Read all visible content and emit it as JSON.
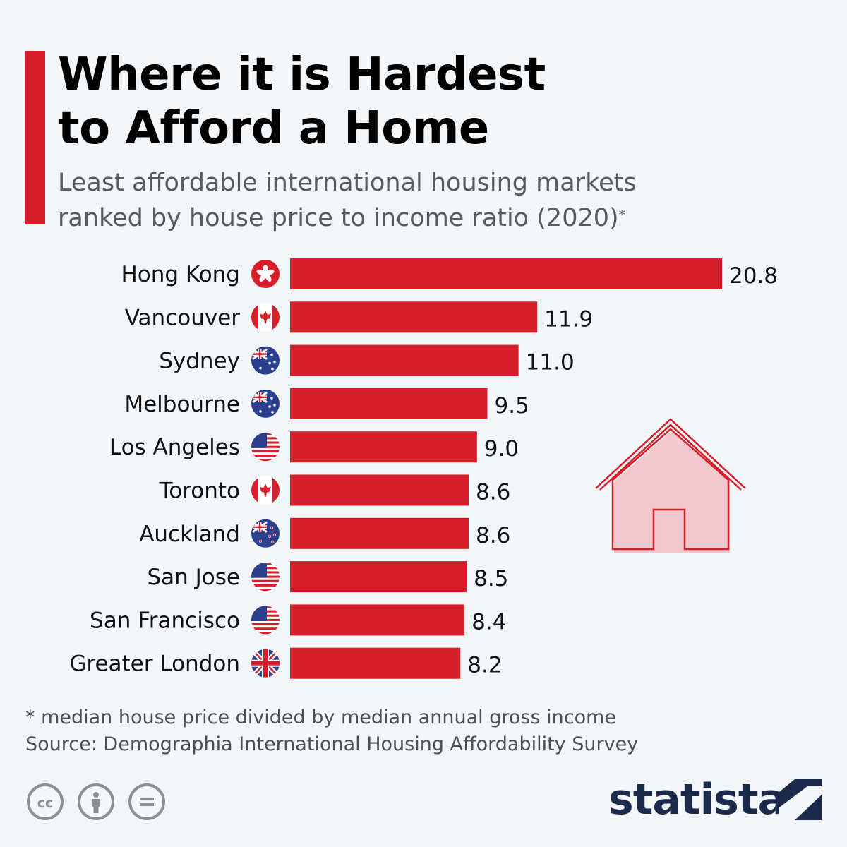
{
  "title": [
    "Where it is Hardest",
    "to Afford a Home"
  ],
  "subtitle": [
    "Least affordable international housing markets",
    "ranked by house price to income ratio (2020)"
  ],
  "subtitle_mark": "*",
  "colors": {
    "accent": "#d61f2a",
    "bar": "#d61f2a",
    "house_fill": "#f3c9cf",
    "logo": "#1b2a4a"
  },
  "chart_data": {
    "type": "bar",
    "orientation": "horizontal",
    "categories": [
      "Hong Kong",
      "Vancouver",
      "Sydney",
      "Melbourne",
      "Los Angeles",
      "Toronto",
      "Auckland",
      "San Jose",
      "San Francisco",
      "Greater London"
    ],
    "values": [
      20.8,
      11.9,
      11.0,
      9.5,
      9.0,
      8.6,
      8.6,
      8.5,
      8.4,
      8.2
    ],
    "value_labels": [
      "20.8",
      "11.9",
      "11.0",
      "9.5",
      "9.0",
      "8.6",
      "8.6",
      "8.5",
      "8.4",
      "8.2"
    ],
    "flags": [
      "hong-kong",
      "canada",
      "australia",
      "australia",
      "usa",
      "canada",
      "new-zealand",
      "usa",
      "usa",
      "uk"
    ],
    "xlim": [
      0,
      20.8
    ]
  },
  "footnote": [
    "* median house price divided by median annual gross income",
    "Source: Demographia International Housing Affordability Survey"
  ],
  "license_icons": [
    "cc-icon",
    "by-icon",
    "nd-icon"
  ],
  "license_text": {
    "cc": "cc",
    "by": "",
    "nd": "="
  },
  "brand": "statista"
}
